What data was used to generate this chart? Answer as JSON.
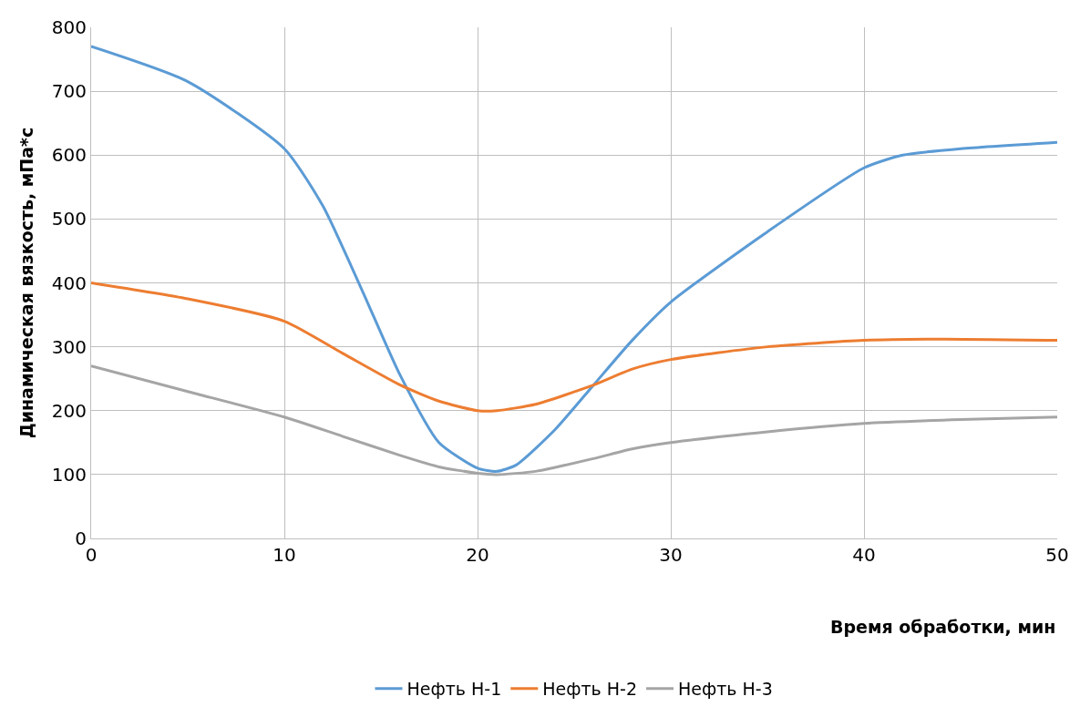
{
  "chart_data": {
    "type": "line",
    "xlabel": "Время обработки, мин",
    "ylabel": "Динамическая вязкость, мПа*с",
    "xlim": [
      0,
      50
    ],
    "xticks": [
      0,
      10,
      20,
      30,
      40,
      50
    ],
    "ylim": [
      0,
      800
    ],
    "yticks": [
      0,
      100,
      200,
      300,
      400,
      500,
      600,
      700,
      800
    ],
    "grid": true,
    "legend": "bottom",
    "marker": "none",
    "line_style": "solid",
    "series": [
      {
        "name": "Нефть Н-1",
        "color": "#5b9bd5",
        "x": [
          0,
          5,
          10,
          12,
          14,
          16,
          18,
          20,
          21,
          22,
          24,
          26,
          28,
          30,
          35,
          40,
          42,
          45,
          50
        ],
        "values": [
          770,
          715,
          610,
          520,
          390,
          255,
          150,
          110,
          105,
          115,
          170,
          240,
          310,
          370,
          480,
          580,
          600,
          610,
          620
        ]
      },
      {
        "name": "Нефть Н-2",
        "color": "#ed7d31",
        "x": [
          0,
          5,
          10,
          13,
          16,
          18,
          20,
          21,
          23,
          26,
          28,
          30,
          35,
          40,
          44,
          50
        ],
        "values": [
          400,
          375,
          340,
          290,
          240,
          215,
          200,
          200,
          210,
          240,
          265,
          280,
          300,
          310,
          312,
          310
        ]
      },
      {
        "name": "Нефть Н-3",
        "color": "#a5a5a5",
        "x": [
          0,
          5,
          10,
          13,
          16,
          18,
          20,
          21,
          23,
          26,
          28,
          30,
          35,
          40,
          45,
          50
        ],
        "values": [
          270,
          230,
          190,
          160,
          130,
          112,
          102,
          100,
          105,
          125,
          140,
          150,
          167,
          180,
          186,
          190
        ]
      }
    ]
  }
}
